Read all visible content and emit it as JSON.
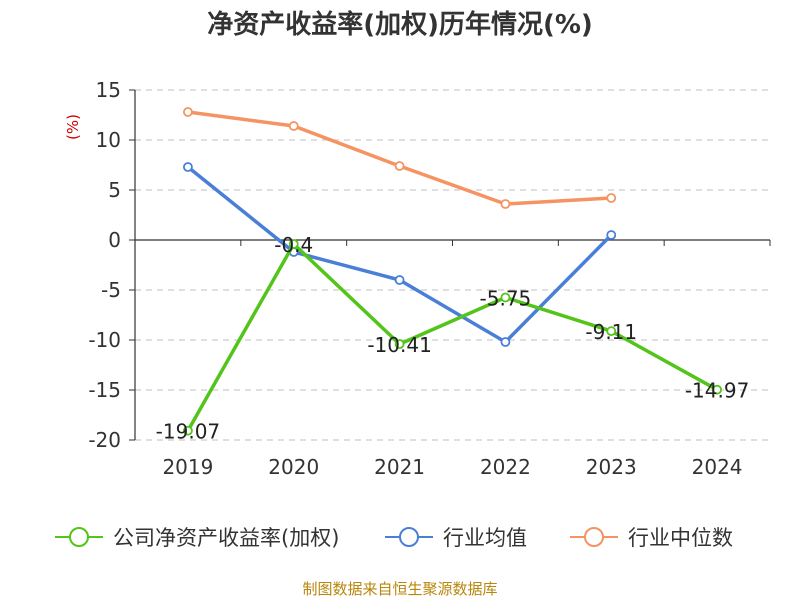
{
  "title": "净资产收益率(加权)历年情况(%)",
  "source": "制图数据来自恒生聚源数据库",
  "colors": {
    "company": "#52c41a",
    "industry_avg": "#4a7fd8",
    "industry_median": "#f59362",
    "axis": "#333333",
    "grid": "#cccccc",
    "ylabel": "#cc0000",
    "source": "#b8860b"
  },
  "chart_data": {
    "type": "line",
    "title": "净资产收益率(加权)历年情况(%)",
    "xlabel": "",
    "ylabel": "(%)",
    "categories": [
      "2019",
      "2020",
      "2021",
      "2022",
      "2023",
      "2024"
    ],
    "ylim": [
      -20,
      15
    ],
    "yticks": [
      15,
      10,
      5,
      0,
      -5,
      -10,
      -15,
      -20
    ],
    "grid": true,
    "legend_position": "bottom",
    "series": [
      {
        "name": "公司净资产收益率(加权)",
        "color": "#52c41a",
        "values": [
          -19.07,
          -0.4,
          -10.41,
          -5.75,
          -9.11,
          -14.97
        ],
        "labels": [
          "-19.07",
          "-0.4",
          "-10.41",
          "-5.75",
          "-9.11",
          "-14.97"
        ]
      },
      {
        "name": "行业均值",
        "color": "#4a7fd8",
        "values": [
          7.3,
          -1.2,
          -4.0,
          -10.2,
          0.5,
          null
        ]
      },
      {
        "name": "行业中位数",
        "color": "#f59362",
        "values": [
          12.8,
          11.4,
          7.4,
          3.6,
          4.2,
          null
        ]
      }
    ]
  }
}
